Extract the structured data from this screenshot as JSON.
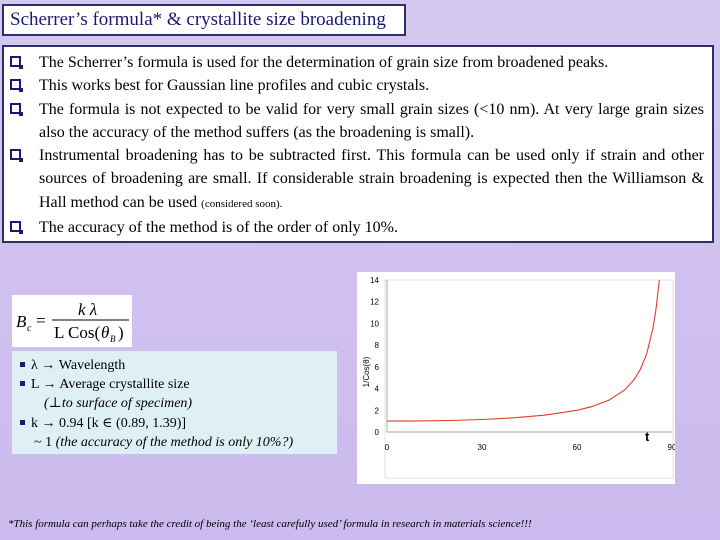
{
  "title": "Scherrer’s formula* & crystallite size broadening",
  "bullets": [
    "The Scherrer’s formula is used for the determination of grain size from broadened peaks.",
    "This works best for Gaussian line profiles and cubic crystals.",
    "The formula is not expected to be valid for very small grain sizes (<10 nm). At very large grain sizes also the accuracy of the method suffers (as the broadening is small).",
    "Instrumental broadening has to be subtracted first. This formula can be used only if strain and other sources of broadening are small. If considerable strain broadening is expected then the Williamson & Hall method can be used ",
    "The accuracy of the method is of the order of only 10%."
  ],
  "bullet4_small": "(considered soon).",
  "formula": {
    "lhs": "B",
    "lhs_sub": "c",
    "eq": "=",
    "numerator": "k λ",
    "den_a": "L Cos(",
    "den_theta": "θ",
    "den_sub": "B",
    "den_b": ")"
  },
  "notes": {
    "l1": "λ → Wavelength",
    "l2": "L →  Average crystallite size",
    "l3": "(⊥to surface of specimen)",
    "l4": "k → 0.94 [k ∈ (0.89, 1.39)]",
    "l5a": "~ 1 ",
    "l5b": "(the accuracy of the method is only 10%?)"
  },
  "chart_data": {
    "type": "line",
    "ylabel": "1/Cos(θ)",
    "xlabel": "t",
    "ylim": [
      0,
      14
    ],
    "yticks": [
      "0",
      "2",
      "4",
      "6",
      "8",
      "10",
      "12",
      "14"
    ],
    "xlim": [
      0,
      90
    ],
    "xticks": [
      "0",
      "30",
      "60",
      "90"
    ],
    "series": [
      {
        "color": "#e33b2e",
        "x": [
          0,
          10,
          20,
          30,
          40,
          50,
          60,
          65,
          70,
          75,
          78,
          80,
          82,
          84,
          85,
          86
        ],
        "y": [
          1.0,
          1.02,
          1.06,
          1.15,
          1.31,
          1.56,
          2.0,
          2.37,
          2.92,
          3.86,
          4.81,
          5.76,
          7.19,
          9.57,
          11.47,
          14.0
        ]
      }
    ]
  },
  "footnote": "*This formula can perhaps take the credit of being the ‘least carefully used’ formula in research in materials science!!!"
}
